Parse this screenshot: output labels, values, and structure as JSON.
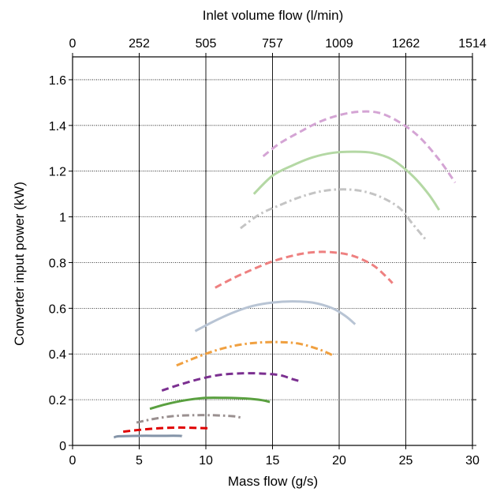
{
  "chart_data": {
    "type": "line",
    "xlabel": "Mass flow (g/s)",
    "ylabel": "Converter input power (kW)",
    "x2label": "Inlet volume flow (l/min)",
    "xlim": [
      0,
      30
    ],
    "ylim": [
      0,
      1.7
    ],
    "xticks": [
      0,
      5,
      10,
      15,
      20,
      25,
      30
    ],
    "xtick_labels": [
      "0",
      "5",
      "10",
      "15",
      "20",
      "25",
      "30"
    ],
    "yticks": [
      0,
      0.2,
      0.4,
      0.6,
      0.8,
      1,
      1.2,
      1.4,
      1.6
    ],
    "ytick_labels": [
      "0",
      "0.2",
      "0.4",
      "0.6",
      "0.8",
      "1",
      "1.2",
      "1.4",
      "1.6"
    ],
    "x2ticks_at_x": [
      0,
      5,
      10,
      15,
      20,
      25,
      30
    ],
    "x2tick_labels": [
      "0",
      "252",
      "505",
      "757",
      "1009",
      "1262",
      "1514"
    ],
    "grid": true,
    "series": [
      {
        "color": "#8494a8",
        "dash": "solid",
        "x": [
          3.1,
          3.5,
          5.0,
          6.5,
          8.0,
          8.2
        ],
        "y": [
          0.035,
          0.04,
          0.042,
          0.042,
          0.042,
          0.04
        ]
      },
      {
        "color": "#e00000",
        "dash": "dash",
        "x": [
          3.8,
          5.0,
          6.5,
          8.0,
          9.5,
          10.3
        ],
        "y": [
          0.06,
          0.068,
          0.075,
          0.078,
          0.076,
          0.075
        ]
      },
      {
        "color": "#9a9090",
        "dash": "dashdot",
        "x": [
          4.8,
          6.0,
          7.5,
          9.0,
          10.5,
          12.0,
          12.6
        ],
        "y": [
          0.1,
          0.115,
          0.128,
          0.132,
          0.132,
          0.128,
          0.122
        ]
      },
      {
        "color": "#5aa040",
        "dash": "solid",
        "x": [
          5.8,
          7.0,
          8.5,
          10.0,
          11.5,
          13.0,
          14.2,
          14.8
        ],
        "y": [
          0.16,
          0.18,
          0.198,
          0.208,
          0.208,
          0.205,
          0.198,
          0.19
        ]
      },
      {
        "color": "#7b2f90",
        "dash": "dash",
        "x": [
          6.7,
          8.0,
          9.5,
          11.0,
          12.5,
          14.0,
          15.5,
          16.5,
          17.1
        ],
        "y": [
          0.24,
          0.265,
          0.29,
          0.308,
          0.315,
          0.315,
          0.308,
          0.29,
          0.28
        ]
      },
      {
        "color": "#f0a040",
        "dash": "dashdot",
        "x": [
          7.8,
          9.5,
          11.0,
          12.5,
          14.0,
          15.5,
          17.0,
          18.5,
          19.5
        ],
        "y": [
          0.35,
          0.39,
          0.42,
          0.44,
          0.45,
          0.452,
          0.445,
          0.42,
          0.395
        ]
      },
      {
        "color": "#b8c4d4",
        "dash": "solid",
        "x": [
          9.2,
          10.5,
          12.0,
          13.5,
          15.0,
          16.5,
          18.0,
          19.5,
          20.5,
          21.2
        ],
        "y": [
          0.5,
          0.54,
          0.58,
          0.61,
          0.625,
          0.63,
          0.625,
          0.6,
          0.565,
          0.53
        ]
      },
      {
        "color": "#ee8080",
        "dash": "dash",
        "x": [
          10.7,
          12.0,
          13.5,
          15.0,
          16.5,
          18.0,
          19.5,
          21.0,
          22.5,
          23.5,
          24.0
        ],
        "y": [
          0.69,
          0.73,
          0.77,
          0.805,
          0.83,
          0.845,
          0.845,
          0.83,
          0.79,
          0.74,
          0.71
        ]
      },
      {
        "color": "#c4c4c4",
        "dash": "dashdot",
        "x": [
          12.6,
          14.0,
          15.5,
          17.0,
          18.5,
          20.0,
          21.5,
          23.0,
          24.5,
          25.5,
          26.5
        ],
        "y": [
          0.95,
          1.01,
          1.05,
          1.085,
          1.11,
          1.12,
          1.115,
          1.09,
          1.04,
          0.97,
          0.9
        ]
      },
      {
        "color": "#b4d8a4",
        "dash": "solid",
        "x": [
          13.6,
          15.0,
          16.5,
          18.0,
          19.5,
          21.0,
          22.5,
          24.0,
          25.5,
          26.7,
          27.5
        ],
        "y": [
          1.1,
          1.18,
          1.225,
          1.26,
          1.28,
          1.285,
          1.28,
          1.25,
          1.18,
          1.1,
          1.03
        ]
      },
      {
        "color": "#d4a4d4",
        "dash": "dash",
        "x": [
          14.3,
          15.5,
          17.0,
          18.5,
          20.0,
          21.5,
          23.0,
          24.5,
          26.0,
          27.5,
          28.7
        ],
        "y": [
          1.265,
          1.32,
          1.37,
          1.415,
          1.445,
          1.46,
          1.455,
          1.415,
          1.35,
          1.25,
          1.15
        ]
      }
    ]
  }
}
